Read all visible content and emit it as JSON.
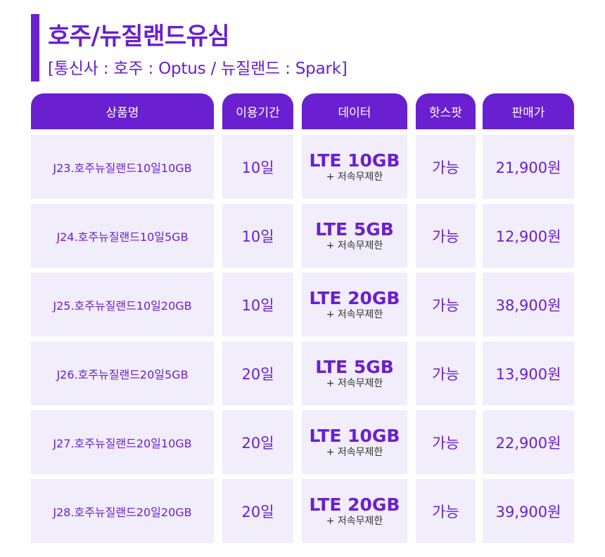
{
  "title": "호주/뉴질랜드유심",
  "subtitle": "[통신사 : 호주 : Optus / 뉴질랜드 : Spark]",
  "headers": {
    "name": "상품명",
    "period": "이용기간",
    "data": "데이터",
    "hotspot": "핫스팟",
    "price": "판매가"
  },
  "rows": [
    {
      "name": "J23.호주뉴질랜드10일10GB",
      "days": "10일",
      "data": "LTE 10GB",
      "data_note": "+ 저속무제한",
      "hotspot": "가능",
      "price": "21,900원"
    },
    {
      "name": "J24.호주뉴질랜드10일5GB",
      "days": "10일",
      "data": "LTE 5GB",
      "data_note": "+ 저속무제한",
      "hotspot": "가능",
      "price": "12,900원"
    },
    {
      "name": "J25.호주뉴질랜드10일20GB",
      "days": "10일",
      "data": "LTE 20GB",
      "data_note": "+ 저속무제한",
      "hotspot": "가능",
      "price": "38,900원"
    },
    {
      "name": "J26.호주뉴질랜드20일5GB",
      "days": "20일",
      "data": "LTE 5GB",
      "data_note": "+ 저속무제한",
      "hotspot": "가능",
      "price": "13,900원"
    },
    {
      "name": "J27.호주뉴질랜드20일10GB",
      "days": "20일",
      "data": "LTE 10GB",
      "data_note": "+ 저속무제한",
      "hotspot": "가능",
      "price": "22,900원"
    },
    {
      "name": "J28.호주뉴질랜드20일20GB",
      "days": "20일",
      "data": "LTE 20GB",
      "data_note": "+ 저속무제한",
      "hotspot": "가능",
      "price": "39,900원"
    }
  ],
  "colors": {
    "accent": "#6a1fd0",
    "cell_bg": "#f1edfa"
  }
}
